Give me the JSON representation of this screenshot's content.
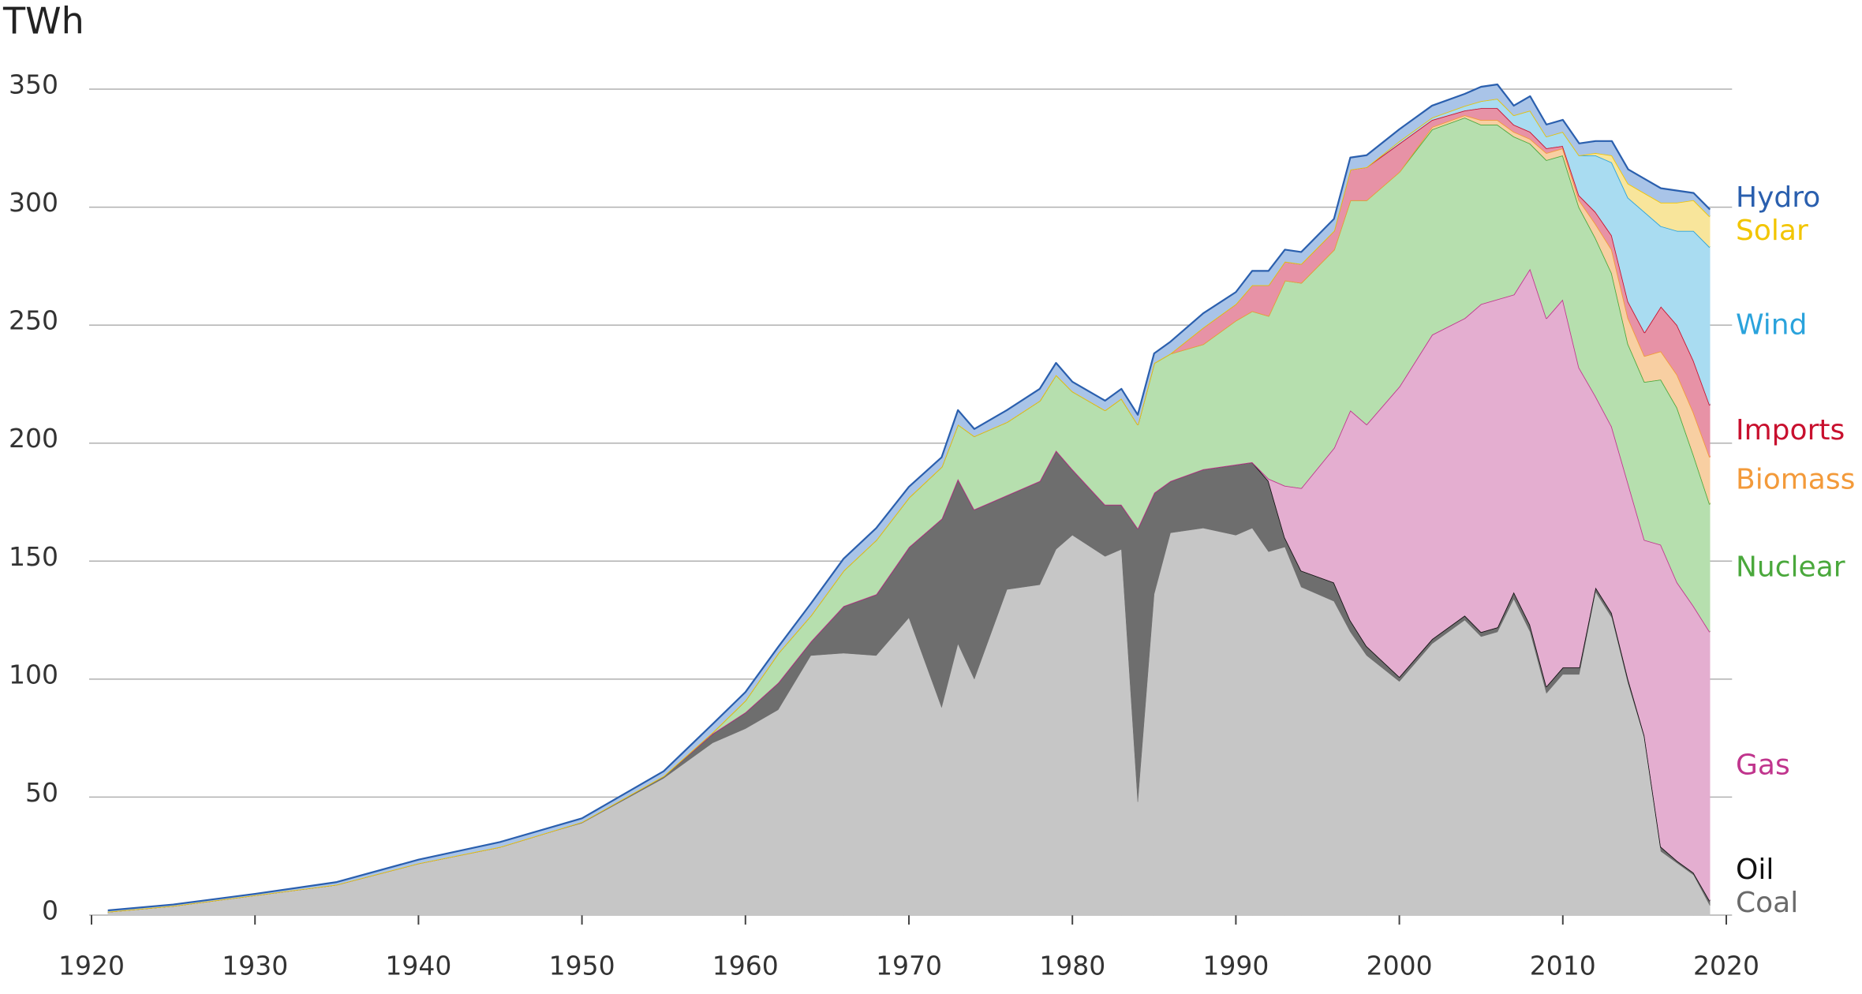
{
  "chart_data": {
    "type": "stacked_area",
    "y_label": "TWh",
    "x": [
      1921,
      1925,
      1930,
      1935,
      1940,
      1945,
      1950,
      1955,
      1958,
      1960,
      1962,
      1964,
      1966,
      1968,
      1970,
      1972,
      1973,
      1974,
      1976,
      1978,
      1979,
      1980,
      1982,
      1983,
      1984,
      1985,
      1986,
      1988,
      1990,
      1991,
      1992,
      1993,
      1994,
      1996,
      1997,
      1998,
      2000,
      2002,
      2004,
      2005,
      2006,
      2007,
      2008,
      2009,
      2010,
      2011,
      2012,
      2013,
      2014,
      2015,
      2016,
      2017,
      2018,
      2019
    ],
    "series": [
      {
        "name": "Coal",
        "color": "#c6c6c6",
        "line_color": "#6a6a6a",
        "values": [
          1.5,
          4,
          8.5,
          13,
          22,
          29,
          39,
          58,
          73,
          79,
          87,
          110,
          111,
          110,
          126,
          88,
          115,
          100,
          138,
          140,
          155,
          161,
          152,
          155,
          48,
          136,
          162,
          164,
          161,
          164,
          154,
          156,
          139,
          133,
          120,
          110,
          99,
          115,
          125,
          118,
          120,
          134,
          120,
          94,
          102,
          102,
          137,
          126,
          98,
          75,
          27,
          22,
          17,
          4
        ]
      },
      {
        "name": "Oil",
        "color": "#6e6e6e",
        "line_color": "#111111",
        "values": [
          0,
          0,
          0,
          0,
          0,
          0,
          0.5,
          1,
          4,
          7,
          11.5,
          6,
          20,
          26,
          30,
          80,
          70,
          72,
          40,
          44,
          42,
          28,
          22,
          19,
          116,
          43,
          22,
          25,
          30,
          28,
          30,
          4,
          7,
          8,
          5,
          4,
          2,
          2,
          2,
          2,
          2,
          3,
          3,
          3,
          3,
          3,
          2,
          2,
          2,
          1,
          2,
          1,
          1,
          2
        ]
      },
      {
        "name": "Gas",
        "color": "#e4aed0",
        "line_color": "#c0358d",
        "values": [
          0,
          0,
          0,
          0,
          0,
          0,
          0,
          0,
          0,
          0,
          0,
          0,
          0,
          0,
          0,
          0,
          0,
          0,
          0,
          0,
          0,
          0,
          0,
          0,
          0,
          0,
          0,
          0,
          0,
          0,
          1,
          22,
          35,
          57,
          89,
          94,
          123,
          129,
          126,
          139,
          139,
          126,
          151,
          156,
          156,
          127,
          81,
          79,
          83,
          83,
          128,
          118,
          113,
          114
        ]
      },
      {
        "name": "Nuclear",
        "color": "#b6dfae",
        "line_color": "#4aa83c",
        "values": [
          0,
          0,
          0,
          0,
          0,
          0,
          0,
          0,
          0.5,
          5,
          12.5,
          11,
          15,
          23,
          21,
          22,
          23,
          31,
          31,
          34,
          32,
          33,
          40,
          45,
          44,
          55,
          54,
          53,
          61,
          64,
          69,
          87,
          87,
          84,
          89,
          95,
          91,
          87,
          85,
          76,
          74,
          67,
          53,
          67,
          61,
          68,
          67,
          65,
          59,
          67,
          70,
          74,
          64,
          54
        ]
      },
      {
        "name": "Biomass",
        "color": "#f8cfa2",
        "line_color": "#f39a3a",
        "values": [
          0,
          0,
          0,
          0,
          0,
          0,
          0,
          0,
          0,
          0,
          0,
          0,
          0,
          0,
          0,
          0,
          0,
          0,
          0,
          0,
          0,
          0,
          0,
          0,
          0,
          0,
          0,
          0,
          0,
          0,
          0,
          0,
          0,
          0,
          0,
          0,
          0,
          1,
          1,
          2,
          2,
          2,
          2,
          3,
          3,
          3,
          6,
          10,
          11,
          11,
          12,
          14,
          18,
          20
        ]
      },
      {
        "name": "Imports",
        "color": "#e792a6",
        "line_color": "#c8102e",
        "values": [
          0,
          0,
          0,
          0,
          0,
          0,
          0,
          0,
          0,
          0,
          0,
          0,
          0,
          0,
          0,
          0,
          0,
          0,
          0,
          0,
          0,
          0,
          0,
          0,
          0,
          0,
          0,
          7,
          7,
          11,
          13,
          8,
          8,
          8,
          13,
          14,
          12,
          3,
          2,
          5,
          5,
          3,
          3,
          2,
          1,
          2,
          5,
          6,
          7,
          10,
          19,
          21,
          22,
          22
        ]
      },
      {
        "name": "Wind",
        "color": "#a9dcf1",
        "line_color": "#2aa3dc",
        "values": [
          0,
          0,
          0,
          0,
          0,
          0,
          0,
          0,
          0,
          0,
          0,
          0,
          0,
          0,
          0,
          0,
          0,
          0,
          0,
          0,
          0,
          0,
          0,
          0,
          0,
          0,
          0,
          0,
          0,
          0,
          0,
          0,
          0,
          0,
          0,
          0,
          1,
          1,
          2,
          3,
          4,
          4,
          9,
          5,
          6,
          17,
          24,
          31,
          44,
          51,
          34,
          40,
          55,
          67
        ]
      },
      {
        "name": "Solar",
        "color": "#f8e59b",
        "line_color": "#f2c500",
        "values": [
          0,
          0,
          0,
          0,
          0,
          0,
          0,
          0,
          0,
          0,
          0,
          0,
          0,
          0,
          0,
          0,
          0,
          0,
          0,
          0,
          0,
          0,
          0,
          0,
          0,
          0,
          0,
          0,
          0,
          0,
          0,
          0,
          0,
          0,
          0,
          0,
          0,
          0,
          0,
          0,
          0,
          0,
          0,
          0,
          0,
          0,
          1,
          3,
          6,
          8,
          10,
          12,
          13,
          13
        ]
      },
      {
        "name": "Hydro",
        "color": "#a9c4e8",
        "line_color": "#2a5fae",
        "values": [
          0.5,
          0.5,
          0.5,
          1,
          1.5,
          2,
          1.5,
          2,
          3.5,
          3.5,
          2.6,
          5,
          5,
          5,
          4.5,
          4,
          6,
          3,
          5,
          5,
          5,
          4,
          4,
          4,
          4,
          4,
          5,
          6,
          5,
          6,
          6,
          5,
          5,
          5,
          5,
          5,
          5,
          5,
          5,
          6,
          6,
          4,
          6,
          5,
          5,
          5,
          5,
          6,
          6,
          6,
          6,
          5,
          3,
          3
        ]
      }
    ],
    "xlim": [
      1920,
      2020
    ],
    "xticks": [
      1920,
      1930,
      1940,
      1950,
      1960,
      1970,
      1980,
      1990,
      2000,
      2010,
      2020
    ],
    "ylim": [
      0,
      350
    ],
    "yticks": [
      0,
      50,
      100,
      150,
      200,
      250,
      300,
      350
    ],
    "grid": true
  }
}
